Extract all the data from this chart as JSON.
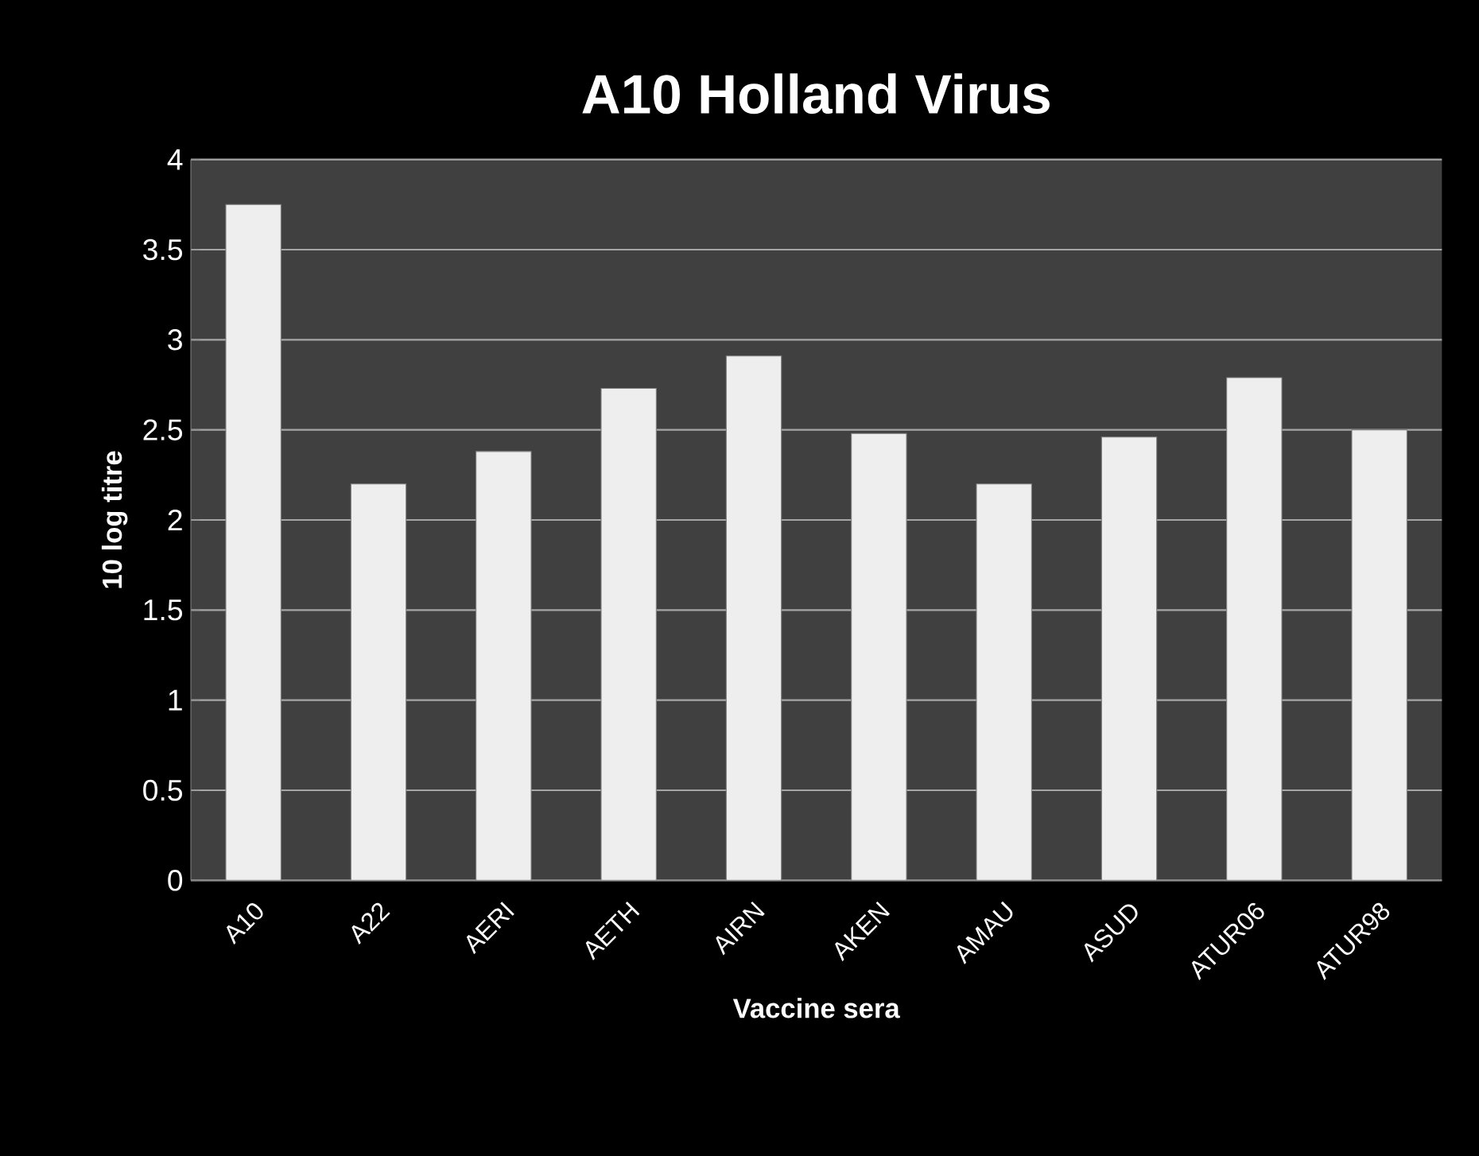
{
  "chart_data": {
    "type": "bar",
    "title": "A10 Holland Virus",
    "xlabel": "Vaccine sera",
    "ylabel": "10 log titre",
    "categories": [
      "A10",
      "A22",
      "AERI",
      "AETH",
      "AIRN",
      "AKEN",
      "AMAU",
      "ASUD",
      "ATUR06",
      "ATUR98"
    ],
    "values": [
      3.75,
      2.2,
      2.38,
      2.73,
      2.91,
      2.48,
      2.2,
      2.46,
      2.79,
      2.5
    ],
    "color": "#eeeeee",
    "ylim": [
      0,
      4
    ],
    "yticks": [
      0,
      0.5,
      1,
      1.5,
      2,
      2.5,
      3,
      3.5,
      4
    ],
    "grid": "y"
  }
}
